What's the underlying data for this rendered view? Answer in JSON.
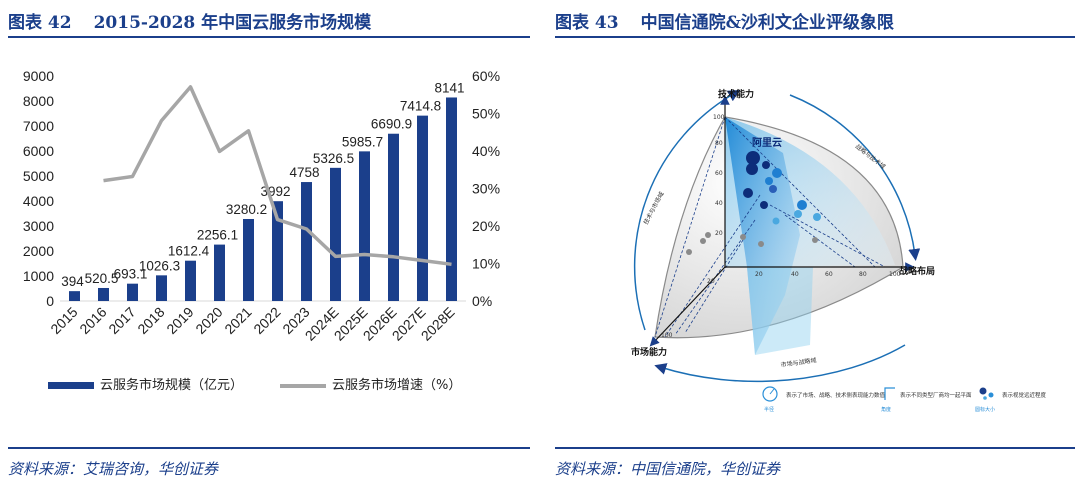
{
  "left": {
    "figure_no": "图表 42",
    "title": "2015-2028 年中国云服务市场规模",
    "source": "资料来源：艾瑞咨询，华创证券"
  },
  "right": {
    "figure_no": "图表 43",
    "title": "中国信通院&沙利文企业评级象限",
    "source": "资料来源：中国信通院，华创证券",
    "axis_tech": "技术能力",
    "axis_strategy": "战略布局",
    "axis_market": "市场能力",
    "leader_label": "阿里云",
    "arc_top_right": "战略与技术域",
    "arc_left": "技术与市场域",
    "arc_bottom": "市场与战略域",
    "tick_100": "100",
    "tick_80": "80",
    "tick_60": "60",
    "tick_40": "40",
    "tick_20": "20",
    "legend": [
      {
        "text": "表示了市场、战略、技术侧表现能力数值",
        "sub": "半径"
      },
      {
        "text": "表示不同类型厂商均一起平面",
        "sub": "角度"
      },
      {
        "text": "表示视觉远近程度",
        "sub": "圆标大小"
      }
    ],
    "colors": {
      "accent": "#1b3f8b",
      "sky": "#4aa8e0"
    }
  },
  "chart_data": {
    "type": "bar",
    "categories": [
      "2015",
      "2016",
      "2017",
      "2018",
      "2019",
      "2020",
      "2021",
      "2022",
      "2023",
      "2024E",
      "2025E",
      "2026E",
      "2027E",
      "2028E"
    ],
    "series": [
      {
        "name": "云服务市场规模（亿元）",
        "type": "bar",
        "axis": "left",
        "values": [
          394,
          520.5,
          693.1,
          1026.3,
          1612.4,
          2256.1,
          3280.2,
          3992,
          4758,
          5326.5,
          5985.7,
          6690.9,
          7414.8,
          8141
        ],
        "labels": [
          "394",
          "520.5",
          "693.1",
          "1026.3",
          "1612.4",
          "2256.1",
          "3280.2",
          "3992",
          "4758",
          "5326.5",
          "5985.7",
          "6690.9",
          "7414.8",
          "8141"
        ],
        "color": "#1b3f8b"
      },
      {
        "name": "云服务市场增速（%）",
        "type": "line",
        "axis": "right",
        "values": [
          null,
          32.1,
          33.2,
          48.1,
          57.1,
          39.9,
          45.4,
          21.7,
          19.2,
          11.9,
          12.4,
          11.8,
          10.8,
          9.8
        ],
        "color": "#a6a6a6"
      }
    ],
    "y_left": {
      "min": 0,
      "max": 9000,
      "ticks": [
        "0",
        "1000",
        "2000",
        "3000",
        "4000",
        "5000",
        "6000",
        "7000",
        "8000",
        "9000"
      ]
    },
    "y_right": {
      "min": 0,
      "max": 60,
      "ticks": [
        "0%",
        "10%",
        "20%",
        "30%",
        "40%",
        "50%",
        "60%"
      ]
    },
    "grid": false,
    "legend_position": "bottom"
  }
}
